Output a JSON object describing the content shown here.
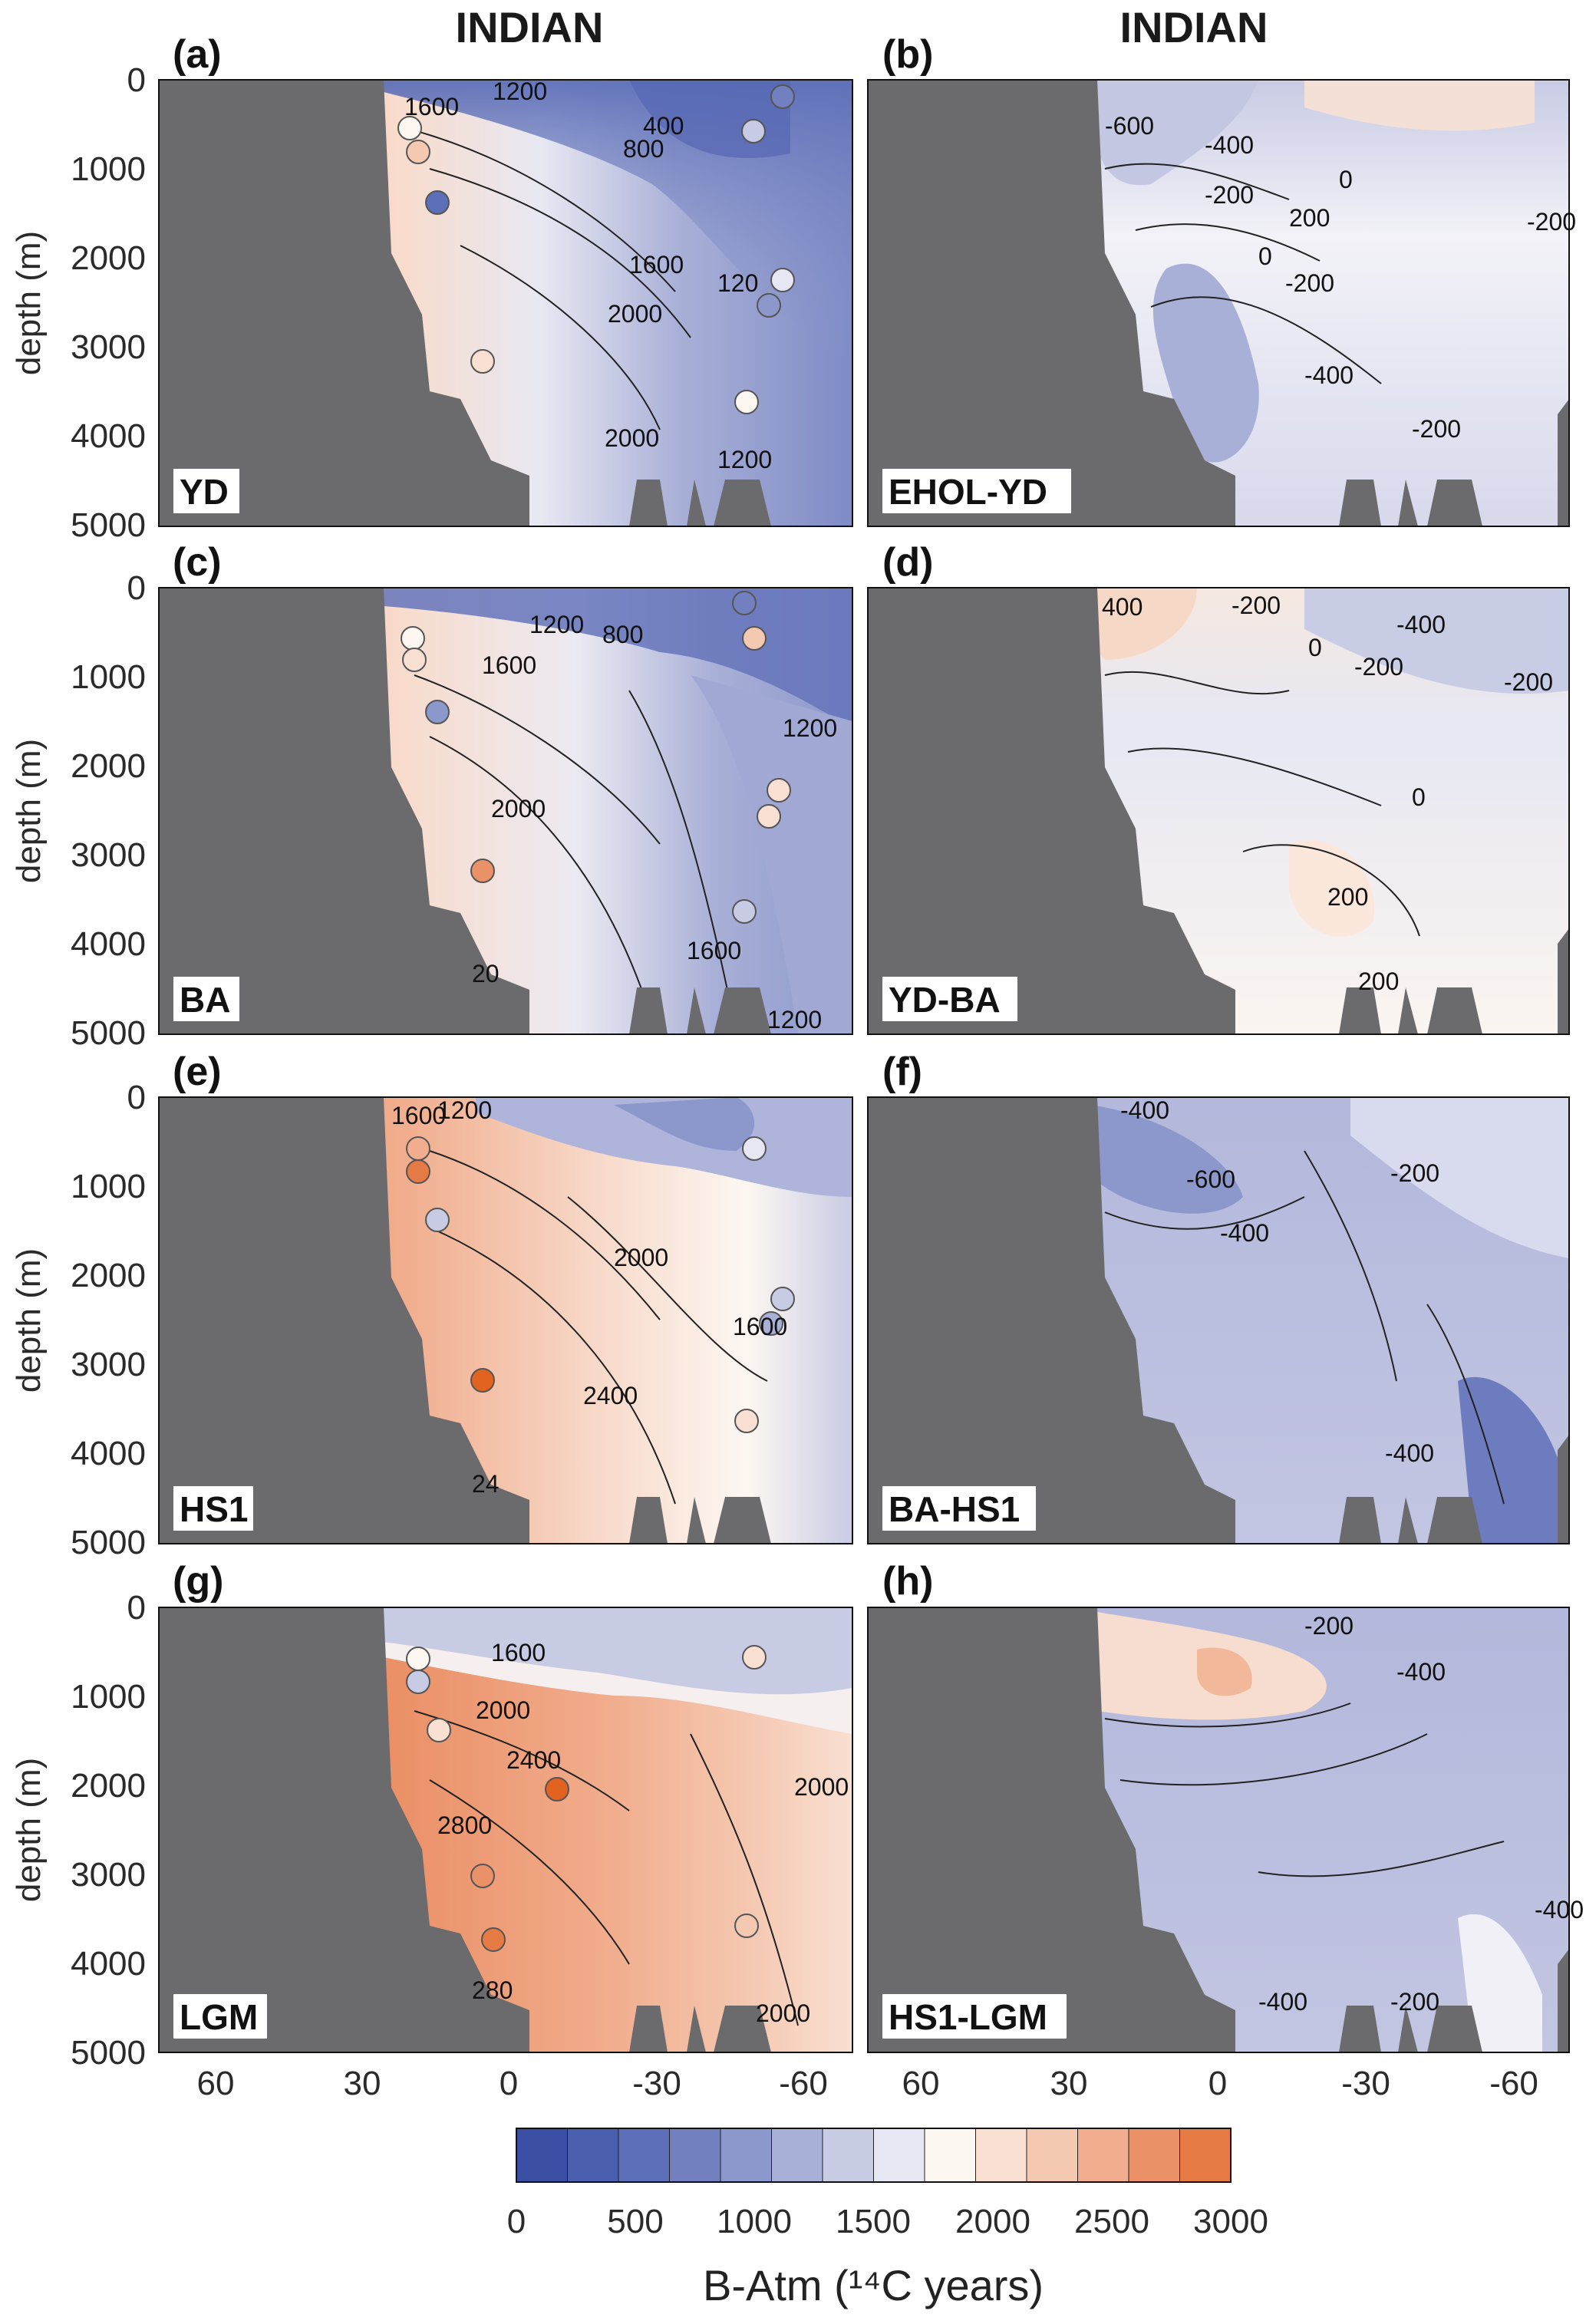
{
  "figure": {
    "column_titles": [
      "INDIAN",
      "INDIAN"
    ],
    "colorbar": {
      "ticks": [
        "0",
        "500",
        "1000",
        "1500",
        "2000",
        "2500",
        "3000"
      ],
      "title": "B-Atm (¹⁴C years)",
      "colors": [
        "#3a4fa3",
        "#4a5fad",
        "#5d6fb8",
        "#7280c0",
        "#8c98cb",
        "#a9b0d7",
        "#c8cbe4",
        "#e6e7f2",
        "#fdf7f2",
        "#f9e0d2",
        "#f5c8b1",
        "#f1ad8d",
        "#eb9168",
        "#e67a45"
      ]
    },
    "yaxis_ticks": [
      "0",
      "1000",
      "2000",
      "3000",
      "4000",
      "5000"
    ],
    "ylabel": "depth (m)",
    "xaxis_ticks": [
      "60",
      "30",
      "0",
      "-30",
      "-60"
    ]
  },
  "chart_data": [
    {
      "type": "heatmap",
      "panel": "(a)",
      "name": "YD",
      "title": "INDIAN",
      "ylabel": "depth (m)",
      "ylim": [
        5000,
        0
      ],
      "xlim": [
        70,
        -72
      ],
      "contour_labels": [
        "1200",
        "1600",
        "400",
        "800",
        "1600",
        "2000",
        "2000",
        "120",
        "1200"
      ]
    },
    {
      "type": "heatmap",
      "panel": "(b)",
      "name": "EHOL-YD",
      "title": "INDIAN",
      "xlim": [
        70,
        -72
      ],
      "ylim": [
        5000,
        0
      ],
      "contour_labels": [
        "-600",
        "-400",
        "-200",
        "0",
        "200",
        "0",
        "-200",
        "-400",
        "-200",
        "-200"
      ]
    },
    {
      "type": "heatmap",
      "panel": "(c)",
      "name": "BA",
      "ylabel": "depth (m)",
      "ylim": [
        5000,
        0
      ],
      "xlim": [
        70,
        -72
      ],
      "contour_labels": [
        "1200",
        "800",
        "1600",
        "1200",
        "2000",
        "20",
        "1600",
        "1200"
      ]
    },
    {
      "type": "heatmap",
      "panel": "(d)",
      "name": "YD-BA",
      "xlim": [
        70,
        -72
      ],
      "ylim": [
        5000,
        0
      ],
      "contour_labels": [
        "400",
        "-200",
        "0",
        "-200",
        "-400",
        "-200",
        "0",
        "200",
        "200"
      ]
    },
    {
      "type": "heatmap",
      "panel": "(e)",
      "name": "HS1",
      "ylabel": "depth (m)",
      "ylim": [
        5000,
        0
      ],
      "xlim": [
        70,
        -72
      ],
      "contour_labels": [
        "1600",
        "1200",
        "2000",
        "1600",
        "2400",
        "24"
      ]
    },
    {
      "type": "heatmap",
      "panel": "(f)",
      "name": "BA-HS1",
      "xlim": [
        70,
        -72
      ],
      "ylim": [
        5000,
        0
      ],
      "contour_labels": [
        "-400",
        "-600",
        "-400",
        "-200",
        "-400"
      ]
    },
    {
      "type": "heatmap",
      "panel": "(g)",
      "name": "LGM",
      "ylabel": "depth (m)",
      "ylim": [
        5000,
        0
      ],
      "xlim": [
        70,
        -72
      ],
      "contour_labels": [
        "1600",
        "2000",
        "2400",
        "2800",
        "2000",
        "2000",
        "280"
      ]
    },
    {
      "type": "heatmap",
      "panel": "(h)",
      "name": "HS1-LGM",
      "xlim": [
        70,
        -72
      ],
      "ylim": [
        5000,
        0
      ],
      "contour_labels": [
        "-200",
        "-400",
        "-400",
        "-200",
        "-400"
      ]
    }
  ]
}
